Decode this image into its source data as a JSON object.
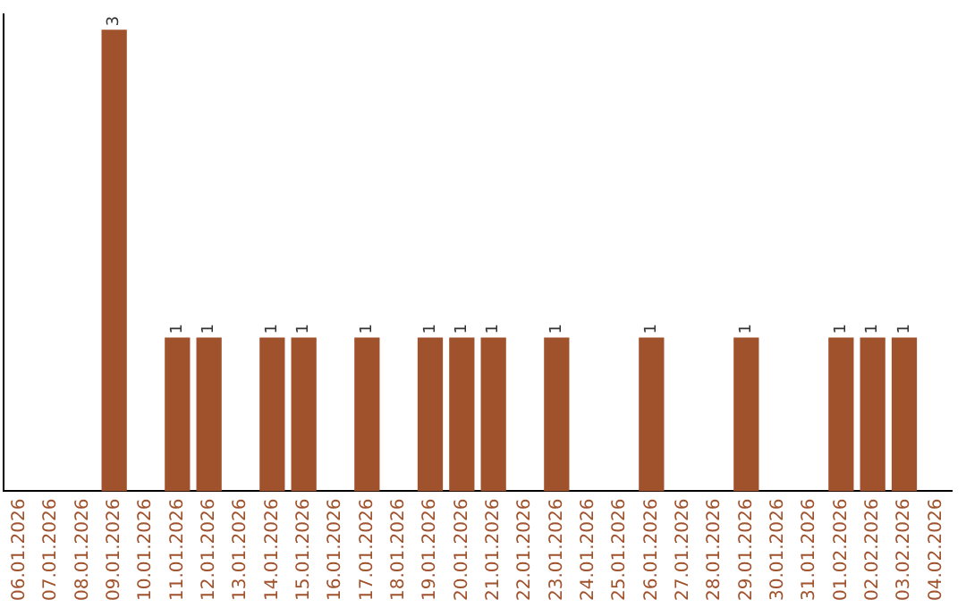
{
  "chart_data": {
    "type": "bar",
    "categories": [
      "06.01.2026",
      "07.01.2026",
      "08.01.2026",
      "09.01.2026",
      "10.01.2026",
      "11.01.2026",
      "12.01.2026",
      "13.01.2026",
      "14.01.2026",
      "15.01.2026",
      "16.01.2026",
      "17.01.2026",
      "18.01.2026",
      "19.01.2026",
      "20.01.2026",
      "21.01.2026",
      "22.01.2026",
      "23.01.2026",
      "24.01.2026",
      "25.01.2026",
      "26.01.2026",
      "27.01.2026",
      "28.01.2026",
      "29.01.2026",
      "30.01.2026",
      "31.01.2026",
      "01.02.2026",
      "02.02.2026",
      "03.02.2026",
      "04.02.2026"
    ],
    "values": [
      0,
      0,
      0,
      3,
      0,
      1,
      1,
      0,
      1,
      1,
      0,
      1,
      0,
      1,
      1,
      1,
      0,
      1,
      0,
      0,
      1,
      0,
      0,
      1,
      0,
      0,
      1,
      1,
      1,
      0
    ],
    "value_labels": [
      null,
      null,
      null,
      "3",
      null,
      "1",
      "1",
      null,
      "1",
      "1",
      null,
      "1",
      null,
      "1",
      "1",
      "1",
      null,
      "1",
      null,
      null,
      "1",
      null,
      null,
      "1",
      null,
      null,
      "1",
      "1",
      "1",
      null
    ],
    "color": "#a0522d",
    "ylim": [
      0,
      3.1
    ],
    "tick_labels": "x",
    "grid": false,
    "legend": false
  }
}
